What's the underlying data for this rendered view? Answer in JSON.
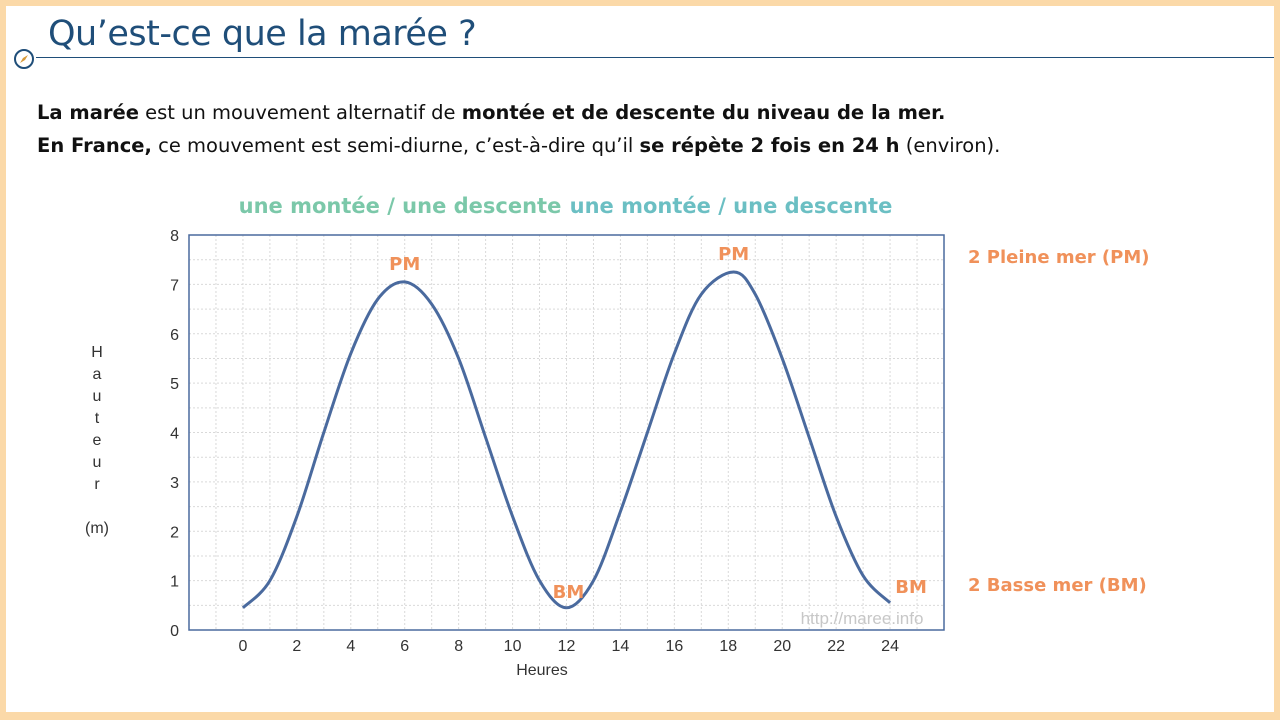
{
  "title": "Qu’est-ce que la marée ?",
  "intro": {
    "l1_a": "La marée",
    "l1_b": " est un mouvement alternatif de ",
    "l1_c": "montée et de descente du niveau de la mer.",
    "l2_a": "En France,",
    "l2_b": " ce mouvement est semi-diurne, c’est-à-dire qu’il ",
    "l2_c": "se répète 2 fois en 24 h",
    "l2_d": " (environ)."
  },
  "cycle_labels": [
    "une montée / une descente",
    "une montée / une descente"
  ],
  "right_labels": {
    "pm": "2 Pleine mer (PM)",
    "bm": "2 Basse mer (BM)"
  },
  "colors": {
    "frame": "#fbd9a8",
    "title": "#1f4e79",
    "curve": "#4a6a9e",
    "orange": "#f0915a",
    "cycle1": "#7bc8a9",
    "cycle2": "#6bbfc3"
  },
  "icons": {
    "bullet": "compass-icon"
  },
  "chart_data": {
    "type": "line",
    "xlabel": "Heures",
    "ylabel_letters": [
      "H",
      "a",
      "u",
      "t",
      "e",
      "u",
      "r"
    ],
    "ylabel_unit": "(m)",
    "xticks": [
      0,
      2,
      4,
      6,
      8,
      10,
      12,
      14,
      16,
      18,
      20,
      22,
      24
    ],
    "yticks": [
      0,
      1,
      2,
      3,
      4,
      5,
      6,
      7,
      8
    ],
    "xlim": [
      -2,
      26
    ],
    "ylim": [
      0,
      8
    ],
    "grid": true,
    "watermark": "http://maree.info",
    "series": [
      {
        "x": [
          0,
          1,
          2,
          3,
          4,
          5,
          6,
          7,
          8,
          9,
          10,
          11,
          12,
          13,
          14,
          15,
          16,
          17,
          18.2,
          19,
          20,
          21,
          22,
          23,
          24
        ],
        "y": [
          0.45,
          1.0,
          2.3,
          4.0,
          5.6,
          6.7,
          7.05,
          6.6,
          5.5,
          3.9,
          2.3,
          1.0,
          0.45,
          1.0,
          2.4,
          4.0,
          5.6,
          6.8,
          7.25,
          6.8,
          5.5,
          3.9,
          2.3,
          1.1,
          0.55
        ]
      }
    ],
    "annotations": [
      {
        "text": "PM",
        "x": 6,
        "y": 7.05
      },
      {
        "text": "BM",
        "x": 12,
        "y": 0.45
      },
      {
        "text": "PM",
        "x": 18.2,
        "y": 7.25
      },
      {
        "text": "BM",
        "x": 24,
        "y": 0.55
      }
    ]
  }
}
